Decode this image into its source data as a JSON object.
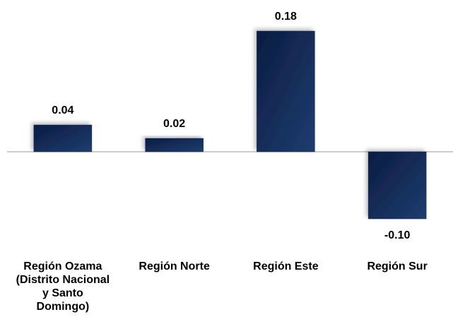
{
  "chart_data": {
    "type": "bar",
    "categories": [
      "Región Ozama (Distrito Nacional y Santo Domingo)",
      "Región Norte",
      "Región Este",
      "Región Sur"
    ],
    "values": [
      0.04,
      0.02,
      0.18,
      -0.1
    ],
    "value_labels": [
      "0.04",
      "0.02",
      "0.18",
      "-0.10"
    ],
    "color": "#142c5a"
  }
}
